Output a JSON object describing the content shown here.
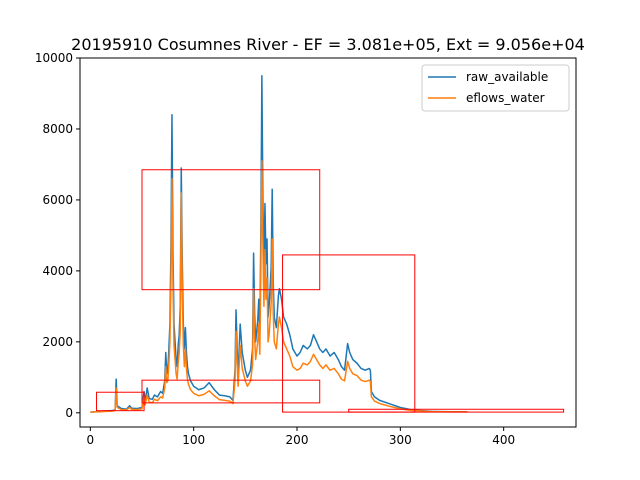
{
  "chart_data": {
    "type": "line",
    "title": "20195910 Cosumnes River - EF = 3.081e+05, Ext = 9.056e+04",
    "xlabel": "",
    "ylabel": "",
    "xlim": [
      -10,
      470
    ],
    "ylim": [
      -400,
      10000
    ],
    "xticks": [
      0,
      100,
      200,
      300,
      400
    ],
    "yticks": [
      0,
      2000,
      4000,
      6000,
      8000,
      10000
    ],
    "grid": false,
    "legend": "top-right",
    "series": [
      {
        "name": "raw_available",
        "color": "#1f77b4",
        "points": [
          [
            0,
            20
          ],
          [
            5,
            30
          ],
          [
            10,
            40
          ],
          [
            15,
            50
          ],
          [
            20,
            60
          ],
          [
            24,
            80
          ],
          [
            25,
            950
          ],
          [
            26,
            200
          ],
          [
            30,
            120
          ],
          [
            35,
            100
          ],
          [
            38,
            200
          ],
          [
            40,
            130
          ],
          [
            45,
            120
          ],
          [
            50,
            150
          ],
          [
            52,
            600
          ],
          [
            53,
            300
          ],
          [
            55,
            700
          ],
          [
            57,
            400
          ],
          [
            60,
            380
          ],
          [
            62,
            500
          ],
          [
            65,
            450
          ],
          [
            68,
            600
          ],
          [
            70,
            550
          ],
          [
            72,
            900
          ],
          [
            73,
            1700
          ],
          [
            74,
            1100
          ],
          [
            75,
            1200
          ],
          [
            76,
            1800
          ],
          [
            77,
            2500
          ],
          [
            78,
            4600
          ],
          [
            79,
            8400
          ],
          [
            80,
            4500
          ],
          [
            81,
            2500
          ],
          [
            82,
            2000
          ],
          [
            83,
            1500
          ],
          [
            84,
            1300
          ],
          [
            85,
            1900
          ],
          [
            86,
            2200
          ],
          [
            87,
            3000
          ],
          [
            88,
            6900
          ],
          [
            89,
            4200
          ],
          [
            90,
            2500
          ],
          [
            91,
            1800
          ],
          [
            92,
            2400
          ],
          [
            93,
            1700
          ],
          [
            94,
            1300
          ],
          [
            95,
            1100
          ],
          [
            97,
            900
          ],
          [
            100,
            750
          ],
          [
            105,
            650
          ],
          [
            110,
            700
          ],
          [
            115,
            850
          ],
          [
            120,
            650
          ],
          [
            125,
            500
          ],
          [
            130,
            480
          ],
          [
            135,
            450
          ],
          [
            138,
            350
          ],
          [
            140,
            1200
          ],
          [
            141,
            2900
          ],
          [
            142,
            1900
          ],
          [
            143,
            1000
          ],
          [
            145,
            2500
          ],
          [
            147,
            1700
          ],
          [
            150,
            1200
          ],
          [
            152,
            1000
          ],
          [
            155,
            1200
          ],
          [
            157,
            1800
          ],
          [
            158,
            4500
          ],
          [
            159,
            2800
          ],
          [
            160,
            2000
          ],
          [
            162,
            2600
          ],
          [
            163,
            3200
          ],
          [
            164,
            2200
          ],
          [
            165,
            5000
          ],
          [
            166,
            9500
          ],
          [
            167,
            6000
          ],
          [
            168,
            4000
          ],
          [
            169,
            5900
          ],
          [
            170,
            4200
          ],
          [
            171,
            4900
          ],
          [
            172,
            2700
          ],
          [
            173,
            3000
          ],
          [
            175,
            4100
          ],
          [
            176,
            6300
          ],
          [
            177,
            3700
          ],
          [
            178,
            2700
          ],
          [
            180,
            2400
          ],
          [
            182,
            3300
          ],
          [
            183,
            3500
          ],
          [
            185,
            3200
          ],
          [
            187,
            2700
          ],
          [
            190,
            2500
          ],
          [
            193,
            2200
          ],
          [
            196,
            1800
          ],
          [
            200,
            1600
          ],
          [
            203,
            1700
          ],
          [
            206,
            1900
          ],
          [
            210,
            1800
          ],
          [
            213,
            1900
          ],
          [
            216,
            2200
          ],
          [
            219,
            2000
          ],
          [
            222,
            1800
          ],
          [
            225,
            1700
          ],
          [
            228,
            1800
          ],
          [
            232,
            1600
          ],
          [
            236,
            1700
          ],
          [
            240,
            1500
          ],
          [
            243,
            1300
          ],
          [
            246,
            1200
          ],
          [
            249,
            1950
          ],
          [
            251,
            1700
          ],
          [
            254,
            1500
          ],
          [
            258,
            1400
          ],
          [
            262,
            1250
          ],
          [
            266,
            1200
          ],
          [
            270,
            1250
          ],
          [
            271,
            1200
          ],
          [
            272,
            600
          ],
          [
            275,
            450
          ],
          [
            280,
            350
          ],
          [
            290,
            250
          ],
          [
            300,
            150
          ],
          [
            310,
            90
          ],
          [
            320,
            60
          ],
          [
            330,
            40
          ],
          [
            340,
            35
          ],
          [
            350,
            30
          ],
          [
            360,
            30
          ],
          [
            365,
            30
          ]
        ]
      },
      {
        "name": "eflows_water",
        "color": "#ff7f0e",
        "points": [
          [
            0,
            15
          ],
          [
            5,
            25
          ],
          [
            10,
            30
          ],
          [
            15,
            40
          ],
          [
            20,
            45
          ],
          [
            24,
            60
          ],
          [
            25,
            700
          ],
          [
            26,
            150
          ],
          [
            30,
            90
          ],
          [
            35,
            80
          ],
          [
            38,
            150
          ],
          [
            40,
            100
          ],
          [
            45,
            90
          ],
          [
            50,
            110
          ],
          [
            52,
            450
          ],
          [
            53,
            220
          ],
          [
            55,
            500
          ],
          [
            57,
            300
          ],
          [
            60,
            280
          ],
          [
            62,
            380
          ],
          [
            65,
            340
          ],
          [
            68,
            450
          ],
          [
            70,
            420
          ],
          [
            72,
            700
          ],
          [
            73,
            1300
          ],
          [
            74,
            850
          ],
          [
            75,
            900
          ],
          [
            76,
            1400
          ],
          [
            77,
            2000
          ],
          [
            78,
            3600
          ],
          [
            79,
            6600
          ],
          [
            80,
            3500
          ],
          [
            81,
            1900
          ],
          [
            82,
            1500
          ],
          [
            83,
            1100
          ],
          [
            84,
            950
          ],
          [
            85,
            1400
          ],
          [
            86,
            1700
          ],
          [
            87,
            2300
          ],
          [
            88,
            6200
          ],
          [
            89,
            3300
          ],
          [
            90,
            1900
          ],
          [
            91,
            1300
          ],
          [
            92,
            1800
          ],
          [
            93,
            1250
          ],
          [
            94,
            950
          ],
          [
            95,
            800
          ],
          [
            97,
            650
          ],
          [
            100,
            550
          ],
          [
            105,
            480
          ],
          [
            110,
            520
          ],
          [
            115,
            620
          ],
          [
            120,
            480
          ],
          [
            125,
            370
          ],
          [
            130,
            350
          ],
          [
            135,
            330
          ],
          [
            138,
            260
          ],
          [
            140,
            900
          ],
          [
            141,
            2300
          ],
          [
            142,
            1400
          ],
          [
            143,
            750
          ],
          [
            145,
            1900
          ],
          [
            147,
            1250
          ],
          [
            150,
            900
          ],
          [
            152,
            750
          ],
          [
            155,
            900
          ],
          [
            157,
            1350
          ],
          [
            158,
            3500
          ],
          [
            159,
            2100
          ],
          [
            160,
            1500
          ],
          [
            162,
            2000
          ],
          [
            163,
            2500
          ],
          [
            164,
            1650
          ],
          [
            165,
            4000
          ],
          [
            166,
            7100
          ],
          [
            167,
            4700
          ],
          [
            168,
            3000
          ],
          [
            169,
            4600
          ],
          [
            170,
            3200
          ],
          [
            171,
            3800
          ],
          [
            172,
            2000
          ],
          [
            173,
            2200
          ],
          [
            175,
            3100
          ],
          [
            176,
            4900
          ],
          [
            177,
            2800
          ],
          [
            178,
            2000
          ],
          [
            180,
            1800
          ],
          [
            182,
            2500
          ],
          [
            183,
            2700
          ],
          [
            185,
            2400
          ],
          [
            187,
            2000
          ],
          [
            190,
            1800
          ],
          [
            193,
            1600
          ],
          [
            196,
            1300
          ],
          [
            200,
            1200
          ],
          [
            203,
            1250
          ],
          [
            206,
            1400
          ],
          [
            210,
            1350
          ],
          [
            213,
            1450
          ],
          [
            216,
            1650
          ],
          [
            219,
            1500
          ],
          [
            222,
            1350
          ],
          [
            225,
            1250
          ],
          [
            228,
            1350
          ],
          [
            232,
            1200
          ],
          [
            236,
            1250
          ],
          [
            240,
            1100
          ],
          [
            243,
            950
          ],
          [
            246,
            900
          ],
          [
            249,
            1450
          ],
          [
            251,
            1250
          ],
          [
            254,
            1100
          ],
          [
            258,
            1050
          ],
          [
            262,
            920
          ],
          [
            266,
            880
          ],
          [
            270,
            920
          ],
          [
            271,
            880
          ],
          [
            272,
            450
          ],
          [
            275,
            330
          ],
          [
            280,
            260
          ],
          [
            290,
            180
          ],
          [
            300,
            110
          ],
          [
            310,
            70
          ],
          [
            320,
            50
          ],
          [
            330,
            35
          ],
          [
            340,
            30
          ],
          [
            350,
            25
          ],
          [
            360,
            25
          ],
          [
            365,
            25
          ]
        ]
      }
    ],
    "annotations": {
      "color": "#ff0000",
      "boxes": [
        {
          "x": [
            6,
            52
          ],
          "y": [
            60,
            580
          ]
        },
        {
          "x": [
            50,
            222
          ],
          "y": [
            3470,
            6850
          ]
        },
        {
          "x": [
            50,
            222
          ],
          "y": [
            280,
            920
          ]
        },
        {
          "x": [
            186,
            314
          ],
          "y": [
            20,
            4450
          ]
        },
        {
          "x": [
            250,
            458
          ],
          "y": [
            20,
            100
          ]
        }
      ]
    }
  }
}
